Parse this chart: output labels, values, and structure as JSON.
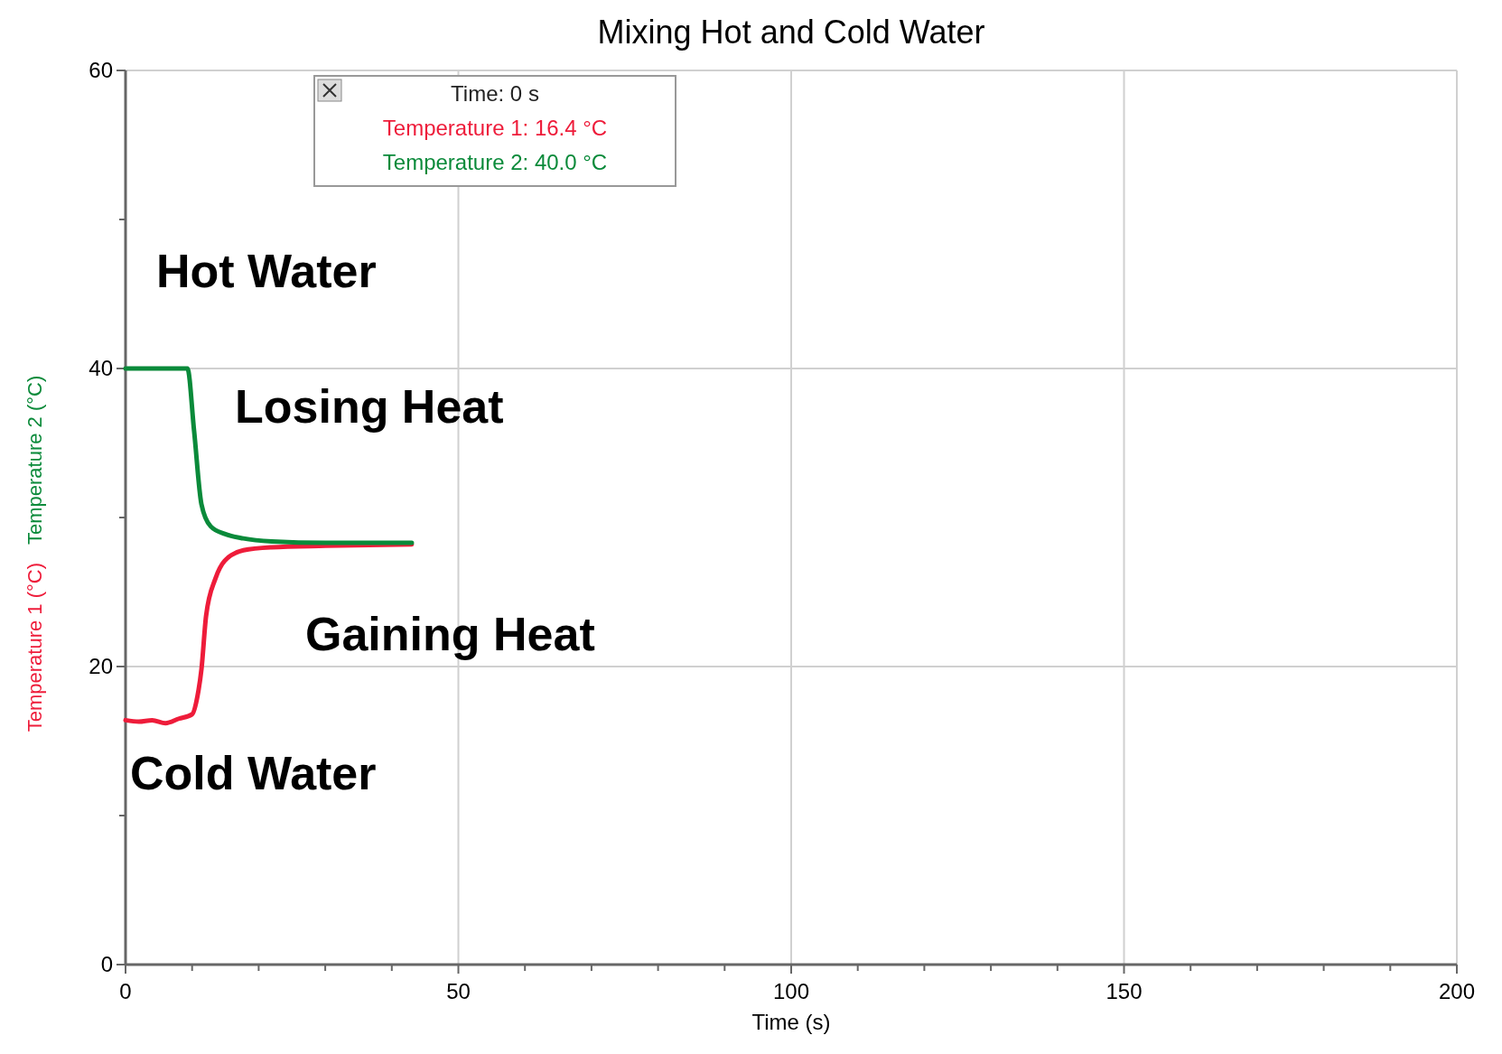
{
  "chart_data": {
    "type": "line",
    "title": "Mixing Hot and Cold Water",
    "xlabel": "Time (s)",
    "xlim": [
      0,
      200
    ],
    "xticks": [
      0,
      {
        "value": 10,
        "label": null
      },
      {
        "value": 20,
        "label": null
      },
      {
        "value": 30,
        "label": null
      },
      {
        "value": 40,
        "label": null
      },
      50,
      {
        "value": 60,
        "label": null
      },
      {
        "value": 70,
        "label": null
      },
      {
        "value": 80,
        "label": null
      },
      {
        "value": 90,
        "label": null
      },
      100,
      {
        "value": 110,
        "label": null
      },
      {
        "value": 120,
        "label": null
      },
      {
        "value": 130,
        "label": null
      },
      {
        "value": 140,
        "label": null
      },
      150,
      {
        "value": 160,
        "label": null
      },
      {
        "value": 170,
        "label": null
      },
      {
        "value": 180,
        "label": null
      },
      {
        "value": 190,
        "label": null
      },
      200
    ],
    "ylim": [
      0,
      60
    ],
    "yticks": [
      0,
      {
        "value": 10,
        "label": null
      },
      20,
      {
        "value": 30,
        "label": null
      },
      40,
      {
        "value": 50,
        "label": null
      },
      60
    ],
    "grid": true,
    "marker": "none",
    "line_style": "solid",
    "series": [
      {
        "name": "Temperature 1 (°C)",
        "color": "#ee1c3a",
        "x": [
          0,
          2,
          4,
          6,
          8,
          10,
          10.8,
          11.4,
          12.1,
          13.5,
          14.9,
          17.7,
          21.9,
          30,
          43
        ],
        "values": [
          16.4,
          16.3,
          16.4,
          16.2,
          16.5,
          16.8,
          18,
          19.8,
          23.4,
          25.9,
          27.1,
          27.8,
          28,
          28.1,
          28.2
        ]
      },
      {
        "name": "Temperature 2 (°C)",
        "color": "#0a8a3a",
        "x": [
          0,
          4,
          9.3,
          10.3,
          11.4,
          12.8,
          14.9,
          17.7,
          22,
          30,
          43
        ],
        "values": [
          40,
          40,
          40,
          35.8,
          30.9,
          29.4,
          28.9,
          28.6,
          28.4,
          28.3,
          28.3
        ]
      }
    ],
    "annotations": [
      "Time: 0 s",
      "Temperature 1: 16.4 °C",
      "Temperature 2: 40.0 °C",
      "Hot Water",
      "Losing Heat",
      "Gaining Heat",
      "Cold Water"
    ]
  }
}
